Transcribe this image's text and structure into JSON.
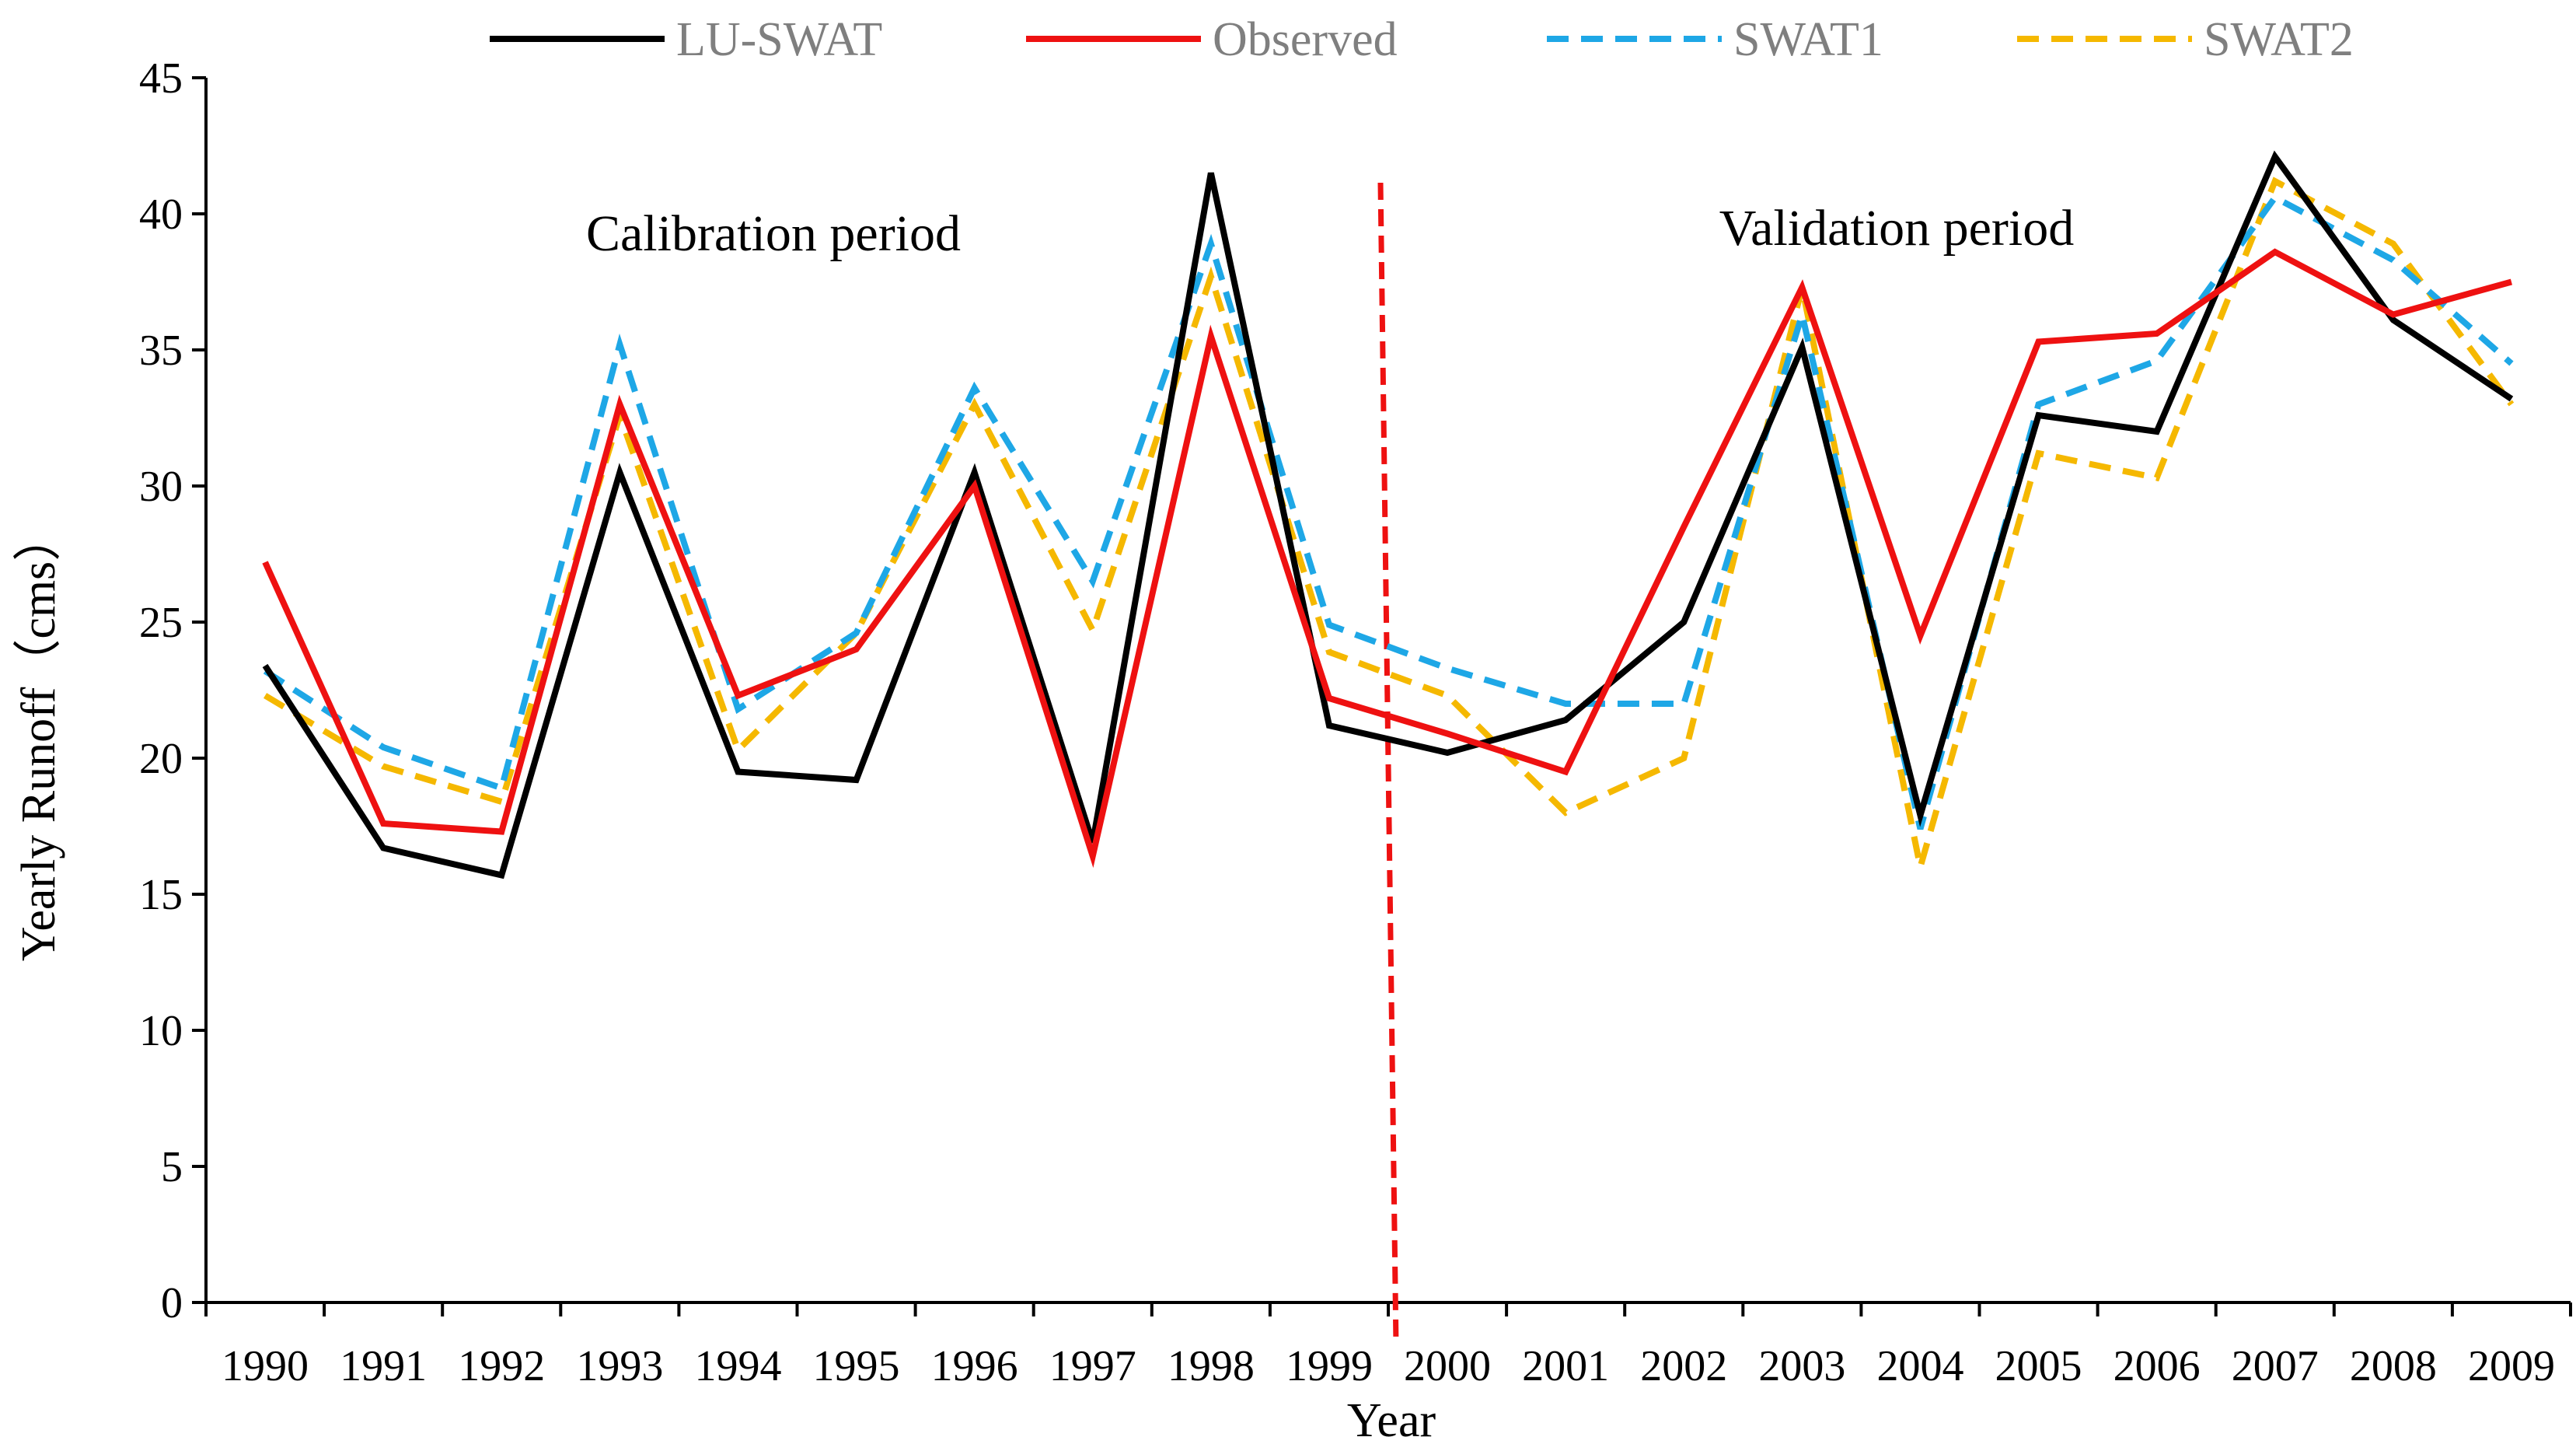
{
  "chart_data": {
    "type": "line",
    "title": "",
    "xlabel": "Year",
    "ylabel": "Yearly Runoff（cms）",
    "ylim": [
      0,
      45
    ],
    "yticks": [
      "0",
      "5",
      "10",
      "15",
      "20",
      "25",
      "30",
      "35",
      "40",
      "45"
    ],
    "categories": [
      "1990",
      "1991",
      "1992",
      "1993",
      "1994",
      "1995",
      "1996",
      "1997",
      "1998",
      "1999",
      "2000",
      "2001",
      "2002",
      "2003",
      "2004",
      "2005",
      "2006",
      "2007",
      "2008",
      "2009"
    ],
    "grid": false,
    "legend_position": "top",
    "series": [
      {
        "name": "LU-SWAT",
        "color": "#000000",
        "dash": "solid",
        "values": [
          23.4,
          16.7,
          15.7,
          30.5,
          19.5,
          19.2,
          30.5,
          16.9,
          41.5,
          21.2,
          20.2,
          21.4,
          25.0,
          35.1,
          17.9,
          32.6,
          32.0,
          42.1,
          36.1,
          33.2
        ]
      },
      {
        "name": "Observed",
        "color": "#ee1111",
        "dash": "solid",
        "values": [
          27.2,
          17.6,
          17.3,
          33.0,
          22.3,
          24.0,
          30.0,
          16.4,
          35.5,
          22.2,
          20.9,
          19.5,
          28.5,
          37.3,
          24.5,
          35.3,
          35.6,
          38.6,
          36.3,
          37.5
        ]
      },
      {
        "name": "SWAT1",
        "color": "#1ea7e6",
        "dash": "dashed",
        "values": [
          23.2,
          20.4,
          18.9,
          35.2,
          21.8,
          24.6,
          33.6,
          26.5,
          38.9,
          24.9,
          23.3,
          22.0,
          22.0,
          36.3,
          17.4,
          33.0,
          34.6,
          40.6,
          38.3,
          34.5
        ]
      },
      {
        "name": "SWAT2",
        "color": "#f5b800",
        "dash": "dashed",
        "values": [
          22.3,
          19.7,
          18.4,
          32.6,
          20.3,
          24.6,
          33.0,
          24.7,
          37.7,
          23.9,
          22.3,
          18.0,
          20.0,
          37.3,
          16.0,
          31.2,
          30.3,
          41.2,
          38.9,
          33.0
        ]
      }
    ],
    "annotations": {
      "calibration": "Calibration period",
      "validation": "Validation period"
    },
    "divider": {
      "between": [
        "1999",
        "2000"
      ],
      "color": "#ee1111"
    }
  }
}
